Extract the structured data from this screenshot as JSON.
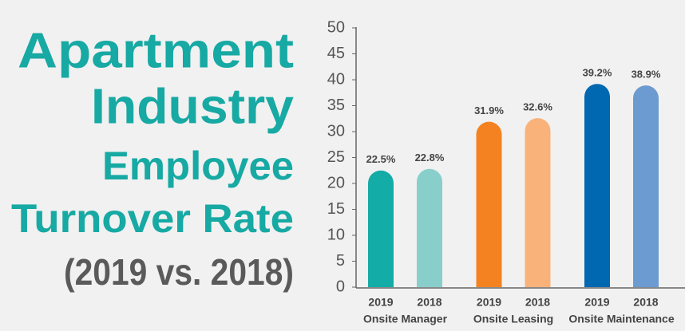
{
  "chart_data": {
    "type": "bar",
    "title_lines": [
      "Apartment",
      "Industry",
      "Employee",
      "Turnover Rate"
    ],
    "subtitle": "(2019 vs. 2018)",
    "categories": [
      "Onsite Manager",
      "Onsite Leasing",
      "Onsite Maintenance"
    ],
    "series": [
      {
        "name": "2019",
        "colors": [
          "#13aca7",
          "#f58220",
          "#0067b1"
        ],
        "values": [
          22.5,
          31.9,
          39.2
        ],
        "value_labels": [
          "22.5%",
          "31.9%",
          "39.2%"
        ]
      },
      {
        "name": "2018",
        "colors": [
          "#88cfcb",
          "#f9b27a",
          "#6b9bd0"
        ],
        "values": [
          22.8,
          32.6,
          38.9
        ],
        "value_labels": [
          "22.8%",
          "32.6%",
          "38.9%"
        ]
      }
    ],
    "ylim": [
      0,
      50
    ],
    "yticks": [
      0,
      5,
      10,
      15,
      20,
      25,
      30,
      35,
      40,
      45,
      50
    ],
    "grid": false
  }
}
